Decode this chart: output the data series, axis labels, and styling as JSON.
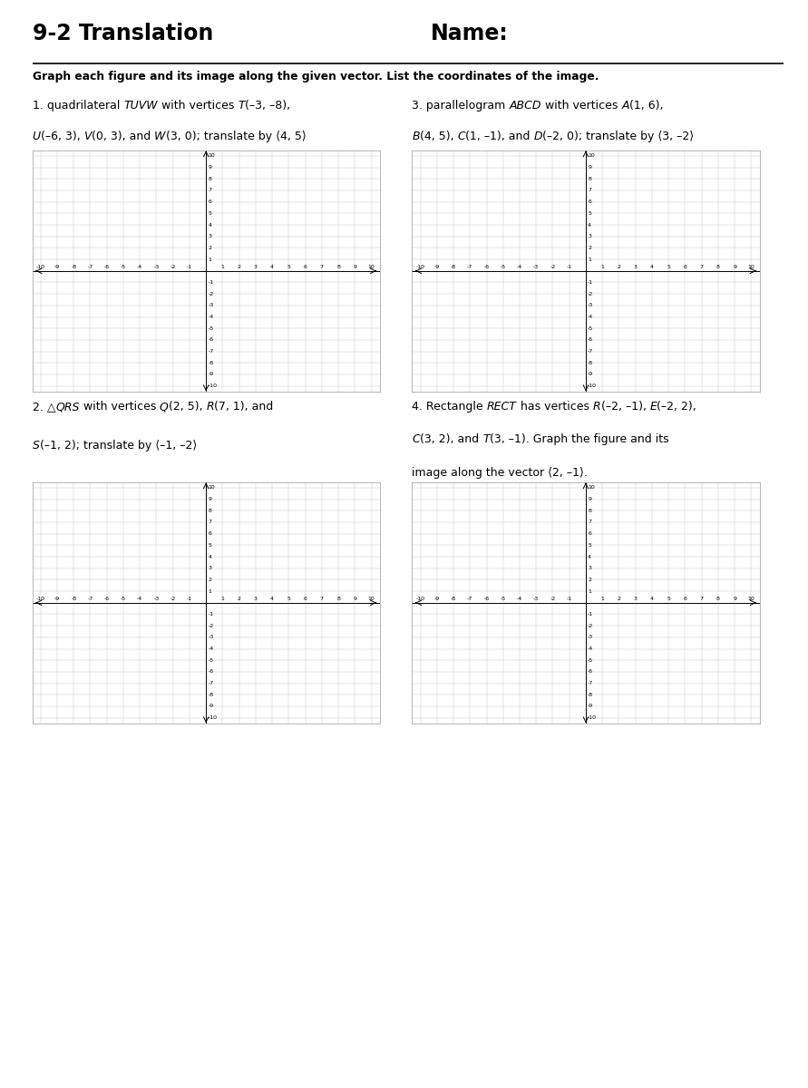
{
  "title": "9-2 Translation",
  "name_label": "Name:",
  "instruction": "Graph each figure and its image along the given vector. List the coordinates of the image.",
  "background": "#ffffff",
  "grid_color": "#cccccc",
  "axis_color": "#000000",
  "tick_label_size": 4.5,
  "grid_linewidth": 0.35,
  "axis_linewidth": 0.7,
  "p1_l1": [
    [
      "1. quadrilateral ",
      false
    ],
    [
      "TUVW",
      true
    ],
    [
      " with vertices ",
      false
    ],
    [
      "T",
      true
    ],
    [
      "(–3, –8),",
      false
    ]
  ],
  "p1_l2": [
    [
      "U",
      true
    ],
    [
      "(–6, 3), ",
      false
    ],
    [
      "V",
      true
    ],
    [
      "(0, 3), and ",
      false
    ],
    [
      "W",
      true
    ],
    [
      "(3, 0); translate by ⟨4, 5⟩",
      false
    ]
  ],
  "p3_l1": [
    [
      "3. parallelogram ",
      false
    ],
    [
      "ABCD",
      true
    ],
    [
      " with vertices ",
      false
    ],
    [
      "A",
      true
    ],
    [
      "(1, 6),",
      false
    ]
  ],
  "p3_l2": [
    [
      "B",
      true
    ],
    [
      "(4, 5), ",
      false
    ],
    [
      "C",
      true
    ],
    [
      "(1, –1), and ",
      false
    ],
    [
      "D",
      true
    ],
    [
      "(–2, 0); translate by ⟨3, –2⟩",
      false
    ]
  ],
  "p2_l1": [
    [
      "2. △",
      false
    ],
    [
      "QRS",
      true
    ],
    [
      " with vertices ",
      false
    ],
    [
      "Q",
      true
    ],
    [
      "(2, 5), ",
      false
    ],
    [
      "R",
      true
    ],
    [
      "(7, 1), and",
      false
    ]
  ],
  "p2_l2": [
    [
      "S",
      true
    ],
    [
      "(–1, 2); translate by ⟨–1, –2⟩",
      false
    ]
  ],
  "p4_l1": [
    [
      "4. Rectangle ",
      false
    ],
    [
      "RECT",
      true
    ],
    [
      " has vertices ",
      false
    ],
    [
      "R",
      true
    ],
    [
      "(–2, –1), ",
      false
    ],
    [
      "E",
      true
    ],
    [
      "(–2, 2),",
      false
    ]
  ],
  "p4_l2": [
    [
      "C",
      true
    ],
    [
      "(3, 2), and ",
      false
    ],
    [
      "T",
      true
    ],
    [
      "(3, –1). Graph the figure and its",
      false
    ]
  ],
  "p4_l3": "image along the vector ⟨2, –1⟩."
}
